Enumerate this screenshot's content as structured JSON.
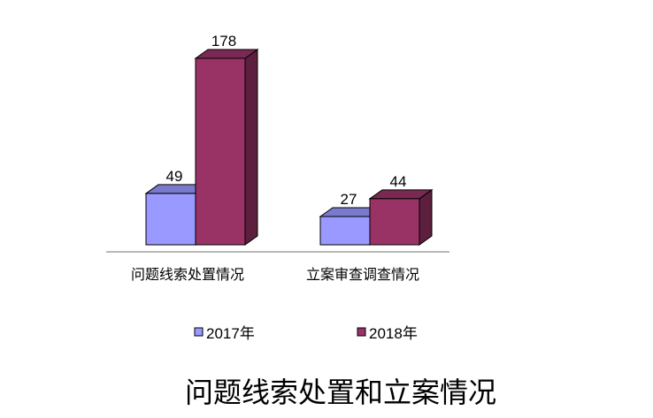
{
  "chart_data": {
    "type": "bar",
    "style": "3d-clustered-column",
    "title": "问题线索处置和立案情况",
    "categories": [
      "问题线索处置情况",
      "立案审查调查情况"
    ],
    "series": [
      {
        "name": "2017年",
        "values": [
          49,
          27
        ],
        "color": "#9999ff",
        "top_color": "#7a7acc",
        "side_color": "#5c5c99"
      },
      {
        "name": "2018年",
        "values": [
          178,
          44
        ],
        "color": "#993366",
        "top_color": "#7a2952",
        "side_color": "#5c1f3d"
      }
    ],
    "ylim": [
      0,
      178
    ],
    "grid": false,
    "legend_position": "bottom",
    "data_labels": true
  }
}
